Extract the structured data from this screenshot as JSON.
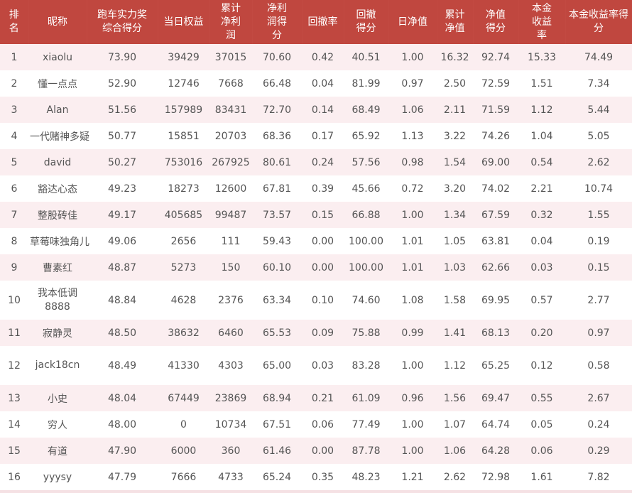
{
  "headers": [
    "排名",
    "昵称",
    "跑车实力奖综合得分",
    "当日权益",
    "累计净利润",
    "净利润得分",
    "回撤率",
    "回撤得分",
    "日净值",
    "累计净值",
    "净值得分",
    "本金收益率",
    "本金收益率得分"
  ],
  "rows": [
    [
      "1",
      "xiaolu",
      "73.90",
      "39429",
      "37015",
      "70.60",
      "0.42",
      "40.51",
      "1.00",
      "16.32",
      "92.74",
      "15.33",
      "74.49"
    ],
    [
      "2",
      "懂一点点",
      "52.90",
      "12746",
      "7668",
      "66.48",
      "0.04",
      "81.99",
      "0.97",
      "2.50",
      "72.59",
      "1.51",
      "7.34"
    ],
    [
      "3",
      "Alan",
      "51.56",
      "157989",
      "83431",
      "72.70",
      "0.14",
      "68.49",
      "1.06",
      "2.11",
      "71.59",
      "1.12",
      "5.44"
    ],
    [
      "4",
      "一代赌神多疑",
      "50.77",
      "15851",
      "20703",
      "68.36",
      "0.17",
      "65.92",
      "1.13",
      "3.22",
      "74.26",
      "1.04",
      "5.05"
    ],
    [
      "5",
      "david",
      "50.27",
      "753016",
      "267925",
      "80.61",
      "0.24",
      "57.56",
      "0.98",
      "1.54",
      "69.00",
      "0.54",
      "2.62"
    ],
    [
      "6",
      "豁达心态",
      "49.23",
      "18273",
      "12600",
      "67.81",
      "0.39",
      "45.66",
      "0.72",
      "3.20",
      "74.02",
      "2.21",
      "10.74"
    ],
    [
      "7",
      "整股砖佳",
      "49.17",
      "405685",
      "99487",
      "73.57",
      "0.15",
      "66.88",
      "1.00",
      "1.34",
      "67.59",
      "0.32",
      "1.55"
    ],
    [
      "8",
      "草莓味独角儿",
      "49.06",
      "2656",
      "111",
      "59.43",
      "0.00",
      "100.00",
      "1.01",
      "1.05",
      "63.81",
      "0.04",
      "0.19"
    ],
    [
      "9",
      "曹素红",
      "48.87",
      "5273",
      "150",
      "60.10",
      "0.00",
      "100.00",
      "1.01",
      "1.03",
      "62.66",
      "0.03",
      "0.15"
    ],
    [
      "10",
      "我本低调8888",
      "48.84",
      "4628",
      "2376",
      "63.34",
      "0.10",
      "74.60",
      "1.08",
      "1.58",
      "69.95",
      "0.57",
      "2.77"
    ],
    [
      "11",
      "寂静灵",
      "48.50",
      "38632",
      "6460",
      "65.53",
      "0.09",
      "75.88",
      "0.99",
      "1.41",
      "68.13",
      "0.20",
      "0.97"
    ],
    [
      "12",
      "jack18cn",
      "48.49",
      "41330",
      "4303",
      "65.00",
      "0.03",
      "83.28",
      "1.00",
      "1.12",
      "65.25",
      "0.12",
      "0.58"
    ],
    [
      "13",
      "小史",
      "48.04",
      "67449",
      "23869",
      "68.94",
      "0.21",
      "61.09",
      "0.96",
      "1.56",
      "69.47",
      "0.55",
      "2.67"
    ],
    [
      "14",
      "穷人",
      "48.00",
      "0",
      "10734",
      "67.51",
      "0.06",
      "77.49",
      "1.00",
      "1.07",
      "64.74",
      "0.05",
      "0.24"
    ],
    [
      "15",
      "有道",
      "47.90",
      "6000",
      "360",
      "61.46",
      "0.00",
      "87.78",
      "1.00",
      "1.06",
      "64.28",
      "0.06",
      "0.29"
    ],
    [
      "16",
      "yyysy",
      "47.79",
      "7666",
      "4733",
      "65.24",
      "0.35",
      "48.23",
      "1.21",
      "2.62",
      "72.98",
      "1.61",
      "7.82"
    ]
  ],
  "colors": {
    "header_bg": "#c0473f",
    "header_text": "#ffffff",
    "row_odd": "#fbeef0",
    "row_even": "#ffffff",
    "cell_text": "#555555"
  }
}
